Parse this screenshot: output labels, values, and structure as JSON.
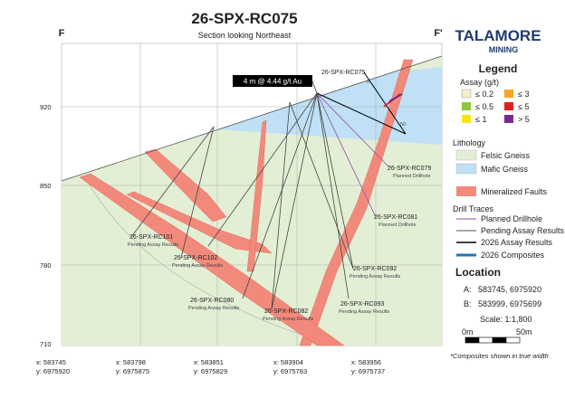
{
  "header": {
    "title": "26-SPX-RC075",
    "subtitle": "Section looking Northeast",
    "left_marker": "F",
    "right_marker": "F'"
  },
  "logo": {
    "name": "TALAMORE",
    "sub": "MINING"
  },
  "section": {
    "y_ticks": [
      "920",
      "850",
      "780",
      "710"
    ],
    "x_ticks": [
      {
        "x": "x: 583745",
        "y": "y: 6975920"
      },
      {
        "x": "x: 583798",
        "y": "y: 6975875"
      },
      {
        "x": "x: 583851",
        "y": "y: 6975829"
      },
      {
        "x": "x: 583904",
        "y": "y: 6975783"
      },
      {
        "x": "x: 583956",
        "y": "y: 6975737"
      }
    ],
    "callout": "4 m @ 4.44 g/t Au",
    "depth_start": "0",
    "depth_end": "50",
    "holes": [
      {
        "name": "26-SPX-RC075"
      },
      {
        "name": "26-SPX-RC079",
        "status": "Planned Drillhole"
      },
      {
        "name": "26-SPX-RC081",
        "status": "Planned Drillhole"
      },
      {
        "name": "26-SPX-RC101",
        "status": "Pending Assay Results"
      },
      {
        "name": "26-SPX-RC102",
        "status": "Pending Assay Results"
      },
      {
        "name": "26-SPX-RC092",
        "status": "Pending Assay Results"
      },
      {
        "name": "26-SPX-RC080",
        "status": "Pending Assay Results"
      },
      {
        "name": "26-SPX-RC082",
        "status": "Pending Assay Results"
      },
      {
        "name": "26-SPX-RC093",
        "status": "Pending Assay Results"
      }
    ]
  },
  "legend": {
    "title": "Legend",
    "assay_title": "Assay (g/t)",
    "assay": [
      {
        "label": "≤ 0.2"
      },
      {
        "label": "≤ 3"
      },
      {
        "label": "≤ 0.5"
      },
      {
        "label": "≤ 5"
      },
      {
        "label": "≤ 1"
      },
      {
        "label": "> 5"
      }
    ],
    "lithology_title": "Lithology",
    "lithology": [
      "Felsic Gneiss",
      "Mafic Gneiss"
    ],
    "faults": "Mineralized Faults",
    "traces_title": "Drill Traces",
    "traces": [
      "Planned Drillhole",
      "Pending Assay Results",
      "2026 Assay Results",
      "2026 Composites"
    ],
    "location_title": "Location",
    "point_a": {
      "key": "A:",
      "coords": "583745, 6975920"
    },
    "point_b": {
      "key": "B:",
      "coords": "583999, 6975699"
    },
    "scale": "Scale: 1:1,800",
    "scale_start": "0m",
    "scale_end": "50m",
    "note": "*Composites shown in true width"
  }
}
